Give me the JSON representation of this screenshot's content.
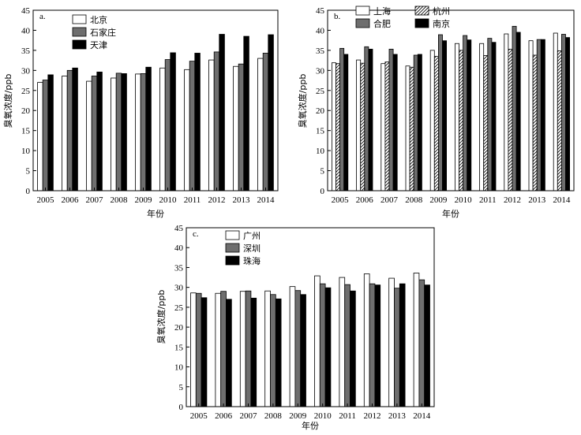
{
  "colors": {
    "white": "#ffffff",
    "gray": "#6e6e6e",
    "black": "#000000",
    "hatch": "hatch"
  },
  "chart_data": [
    {
      "type": "bar",
      "panel": "a.",
      "categories": [
        "2005",
        "2006",
        "2007",
        "2008",
        "2009",
        "2010",
        "2011",
        "2012",
        "2013",
        "2014"
      ],
      "ylim": [
        0,
        45
      ],
      "yticks": [
        0,
        5,
        10,
        15,
        20,
        25,
        30,
        35,
        40,
        45
      ],
      "xlabel": "年份",
      "ylabel": "臭氧浓度/ppb",
      "legend": [
        "北京",
        "石家庄",
        "天津"
      ],
      "series": [
        {
          "name": "北京",
          "fill": "white",
          "values": [
            27.0,
            28.6,
            27.3,
            28.1,
            29.1,
            30.6,
            30.2,
            32.6,
            31.0,
            33.0
          ]
        },
        {
          "name": "石家庄",
          "fill": "gray",
          "values": [
            27.6,
            30.0,
            28.6,
            29.3,
            29.2,
            32.7,
            32.3,
            34.6,
            31.6,
            34.3
          ]
        },
        {
          "name": "天津",
          "fill": "black",
          "values": [
            28.9,
            30.6,
            29.6,
            29.2,
            30.8,
            34.4,
            34.3,
            39.0,
            38.5,
            38.9
          ]
        }
      ]
    },
    {
      "type": "bar",
      "panel": "b.",
      "categories": [
        "2005",
        "2006",
        "2007",
        "2008",
        "2009",
        "2010",
        "2011",
        "2012",
        "2013",
        "2014"
      ],
      "ylim": [
        0,
        45
      ],
      "yticks": [
        0,
        5,
        10,
        15,
        20,
        25,
        30,
        35,
        40,
        45
      ],
      "xlabel": "年份",
      "ylabel": "臭氧浓度/ppb",
      "legend": [
        "上海",
        "杭州",
        "合肥",
        "南京"
      ],
      "series": [
        {
          "name": "上海",
          "fill": "white",
          "values": [
            31.9,
            32.6,
            31.7,
            31.1,
            35.0,
            36.7,
            36.7,
            39.1,
            37.4,
            39.3
          ]
        },
        {
          "name": "杭州",
          "fill": "hatch",
          "values": [
            31.7,
            31.8,
            32.1,
            30.8,
            33.5,
            35.0,
            33.7,
            35.3,
            33.8,
            34.9
          ]
        },
        {
          "name": "合肥",
          "fill": "gray",
          "values": [
            35.5,
            35.9,
            35.3,
            33.8,
            38.9,
            38.7,
            38.0,
            41.0,
            37.7,
            39.0
          ]
        },
        {
          "name": "南京",
          "fill": "black",
          "values": [
            34.0,
            35.3,
            34.0,
            34.0,
            37.4,
            37.6,
            37.0,
            39.5,
            37.7,
            38.2
          ]
        }
      ]
    },
    {
      "type": "bar",
      "panel": "c.",
      "categories": [
        "2005",
        "2006",
        "2007",
        "2008",
        "2009",
        "2010",
        "2011",
        "2012",
        "2013",
        "2014"
      ],
      "ylim": [
        0,
        45
      ],
      "yticks": [
        0,
        5,
        10,
        15,
        20,
        25,
        30,
        35,
        40,
        45
      ],
      "xlabel": "年份",
      "ylabel": "臭氧浓度/ppb",
      "legend": [
        "广州",
        "深圳",
        "珠海"
      ],
      "series": [
        {
          "name": "广州",
          "fill": "white",
          "values": [
            28.6,
            28.5,
            29.0,
            29.1,
            30.2,
            32.9,
            32.5,
            33.4,
            32.3,
            33.6
          ]
        },
        {
          "name": "深圳",
          "fill": "gray",
          "values": [
            28.5,
            29.0,
            29.1,
            28.2,
            29.2,
            30.9,
            30.7,
            30.9,
            29.8,
            31.9
          ]
        },
        {
          "name": "珠海",
          "fill": "black",
          "values": [
            27.4,
            27.0,
            27.3,
            27.1,
            28.2,
            29.9,
            29.1,
            30.6,
            30.9,
            30.6
          ]
        }
      ]
    }
  ]
}
